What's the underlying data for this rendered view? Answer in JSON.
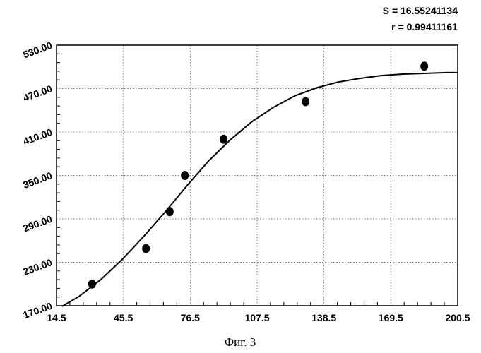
{
  "chart_data": {
    "type": "scatter",
    "stats": [
      "S = 16.55241134",
      "r = 0.99411161"
    ],
    "x_ticks": [
      "14.5",
      "45.5",
      "76.5",
      "107.5",
      "138.5",
      "169.5",
      "200.5"
    ],
    "y_ticks": [
      "170.00",
      "230.00",
      "290.00",
      "350.00",
      "410.00",
      "470.00",
      "530.00"
    ],
    "xlim": [
      14.5,
      200.5
    ],
    "ylim": [
      170,
      530
    ],
    "grid": true,
    "points": {
      "x": [
        31,
        56,
        67,
        74,
        92,
        130,
        185
      ],
      "y": [
        200,
        249,
        300,
        350,
        400,
        452,
        501
      ]
    },
    "fit_curve": {
      "x": [
        17,
        25,
        35,
        45,
        55,
        65,
        75,
        85,
        95,
        105,
        115,
        125,
        135,
        145,
        155,
        165,
        175,
        185,
        195,
        200.5
      ],
      "y": [
        169,
        183,
        206,
        234,
        266,
        300,
        336,
        370,
        399,
        424,
        444,
        460,
        471,
        479,
        484,
        488,
        490,
        491,
        492,
        492
      ]
    },
    "caption": "Фиг. 3"
  }
}
